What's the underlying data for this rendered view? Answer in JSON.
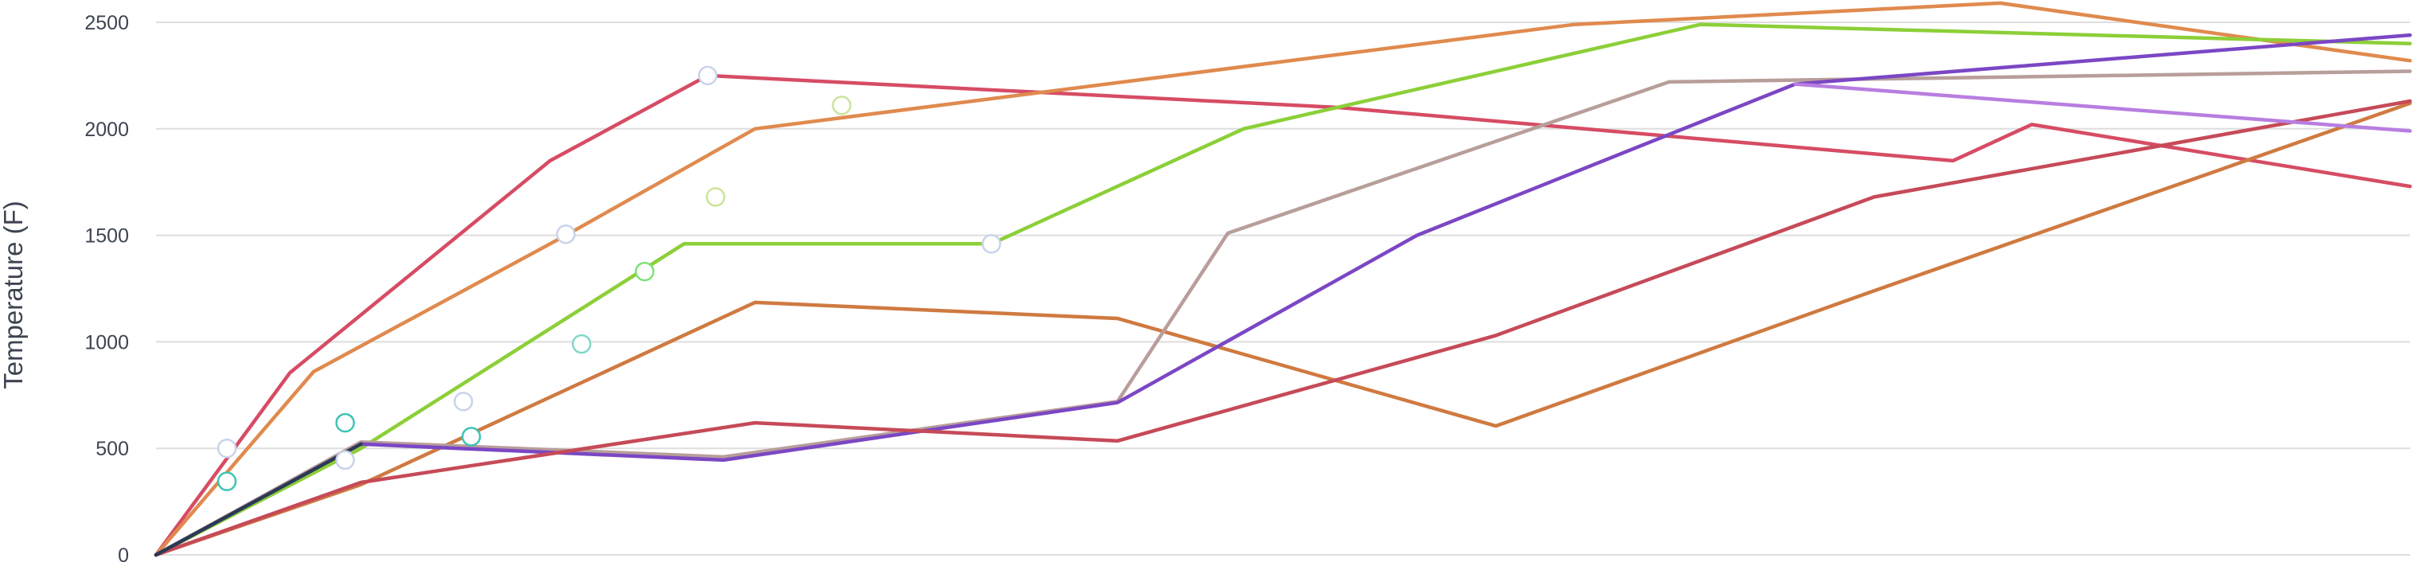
{
  "chart_data": {
    "type": "line",
    "title": "",
    "xlabel": "",
    "ylabel": "Temperature (F)",
    "ylim": [
      0,
      2500
    ],
    "xlim": [
      0,
      14.3
    ],
    "yticks": [
      0,
      500,
      1000,
      1500,
      2000,
      2500
    ],
    "grid": true,
    "legend": "none",
    "series": [
      {
        "color": "#d64c64",
        "points": [
          [
            0,
            0
          ],
          [
            0.85,
            855
          ],
          [
            2.5,
            1850
          ],
          [
            3.5,
            2250
          ],
          [
            7.5,
            2100
          ],
          [
            11.4,
            1850
          ],
          [
            11.9,
            2020
          ],
          [
            14.3,
            1730
          ]
        ]
      },
      {
        "color": "#e08a4e",
        "points": [
          [
            0,
            0
          ],
          [
            1.0,
            860
          ],
          [
            2.6,
            1500
          ],
          [
            3.8,
            2000
          ],
          [
            9.0,
            2490
          ],
          [
            11.7,
            2590
          ],
          [
            14.3,
            2320
          ]
        ]
      },
      {
        "color": "#8ccf38",
        "points": [
          [
            0,
            0
          ],
          [
            1.3,
            500
          ],
          [
            3.35,
            1460
          ],
          [
            5.3,
            1460
          ],
          [
            6.9,
            2000
          ],
          [
            9.8,
            2490
          ],
          [
            14.3,
            2400
          ]
        ]
      },
      {
        "color": "#cf7a40",
        "points": [
          [
            0,
            0
          ],
          [
            1.3,
            330
          ],
          [
            3.8,
            1185
          ],
          [
            6.1,
            1110
          ],
          [
            8.5,
            605
          ],
          [
            10.9,
            1240
          ],
          [
            14.3,
            2120
          ]
        ]
      },
      {
        "color": "#b89e9a",
        "points": [
          [
            0,
            0
          ],
          [
            1.3,
            530
          ],
          [
            3.6,
            460
          ],
          [
            6.1,
            720
          ],
          [
            6.8,
            1510
          ],
          [
            9.6,
            2220
          ],
          [
            14.3,
            2270
          ]
        ]
      },
      {
        "color": "#7b47c4",
        "points": [
          [
            0,
            0
          ],
          [
            1.3,
            520
          ],
          [
            3.6,
            445
          ],
          [
            6.1,
            715
          ],
          [
            8.0,
            1500
          ],
          [
            10.4,
            2210
          ],
          [
            14.3,
            2440
          ]
        ]
      },
      {
        "color": "#c64a58",
        "points": [
          [
            0,
            0
          ],
          [
            1.3,
            340
          ],
          [
            3.8,
            620
          ],
          [
            6.1,
            535
          ],
          [
            8.5,
            1030
          ],
          [
            10.9,
            1680
          ],
          [
            14.3,
            2130
          ]
        ]
      },
      {
        "color": "#b77ee0",
        "points": [
          [
            10.4,
            2210
          ],
          [
            14.3,
            1990
          ]
        ]
      },
      {
        "color": "#2b3a55",
        "points": [
          [
            0,
            0
          ],
          [
            1.3,
            520
          ]
        ]
      }
    ],
    "scatter": [
      {
        "x": 0.45,
        "y": 500,
        "color": "#c9d3ea"
      },
      {
        "x": 0.45,
        "y": 345,
        "color": "#3ec4b4"
      },
      {
        "x": 1.2,
        "y": 620,
        "color": "#3ec4b4"
      },
      {
        "x": 1.2,
        "y": 445,
        "color": "#c9d3ea"
      },
      {
        "x": 1.95,
        "y": 720,
        "color": "#c9d3ea"
      },
      {
        "x": 2.0,
        "y": 555,
        "color": "#3ec4b4"
      },
      {
        "x": 2.7,
        "y": 990,
        "color": "#7fd9c9"
      },
      {
        "x": 2.6,
        "y": 1505,
        "color": "#c9d3ea"
      },
      {
        "x": 3.1,
        "y": 1330,
        "color": "#7ee07a"
      },
      {
        "x": 3.5,
        "y": 2250,
        "color": "#c9d3ea"
      },
      {
        "x": 3.55,
        "y": 1680,
        "color": "#cbe49a"
      },
      {
        "x": 4.35,
        "y": 2110,
        "color": "#cbe49a"
      },
      {
        "x": 5.3,
        "y": 1460,
        "color": "#c9d3ea"
      }
    ]
  }
}
